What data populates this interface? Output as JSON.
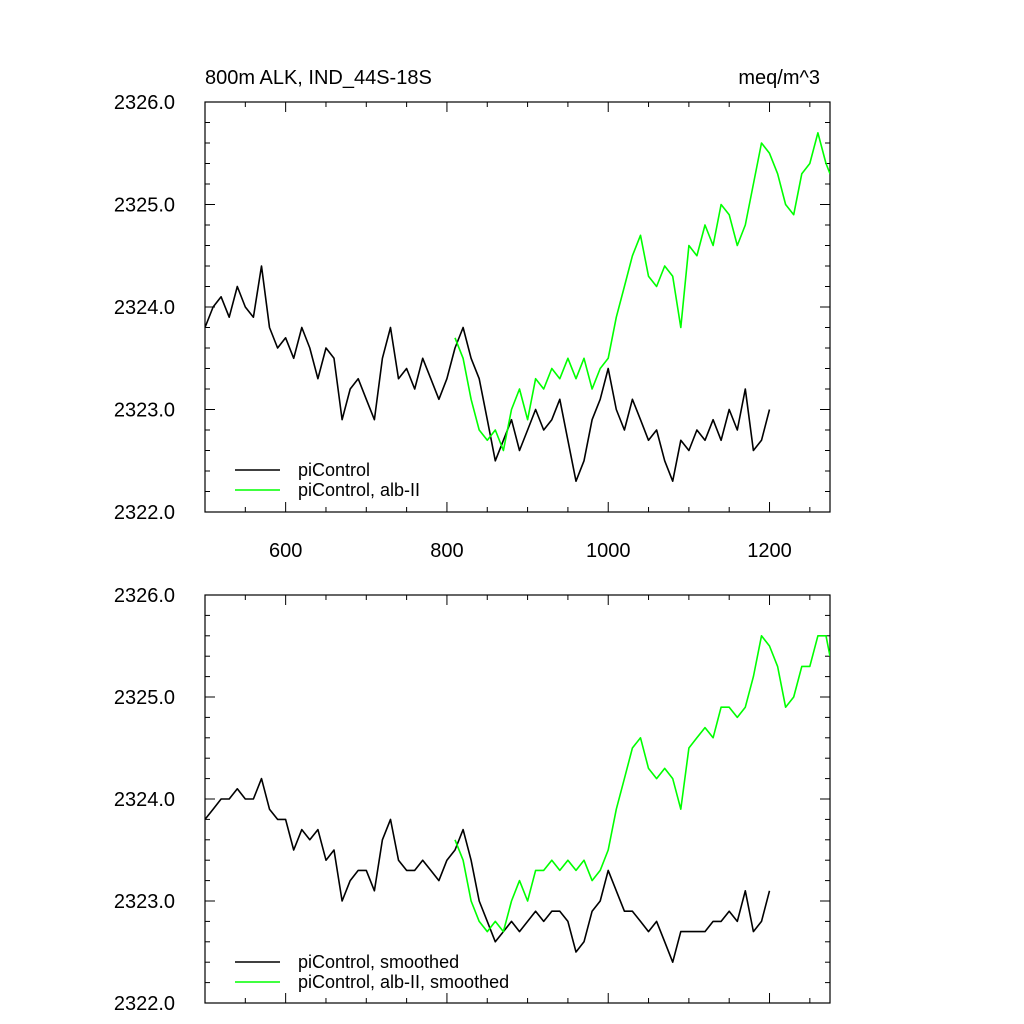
{
  "chart_data": [
    {
      "type": "line",
      "title": "800m ALK, IND_44S-18S",
      "units": "meq/m^3",
      "xlim": [
        500,
        1275
      ],
      "ylim": [
        2322.0,
        2326.0
      ],
      "x_ticks": [
        600,
        800,
        1000,
        1200
      ],
      "x_tick_labels": [
        "600",
        "800",
        "1000",
        "1200"
      ],
      "y_ticks": [
        2322.0,
        2323.0,
        2324.0,
        2325.0,
        2326.0
      ],
      "y_tick_labels": [
        "2322.0",
        "2323.0",
        "2324.0",
        "2325.0",
        "2326.0"
      ],
      "legend_position": "bottom-left",
      "series": [
        {
          "name": "piControl",
          "color": "#000000",
          "x": [
            500,
            510,
            520,
            530,
            540,
            550,
            560,
            570,
            580,
            590,
            600,
            610,
            620,
            630,
            640,
            650,
            660,
            670,
            680,
            690,
            700,
            710,
            720,
            730,
            740,
            750,
            760,
            770,
            780,
            790,
            800,
            810,
            820,
            830,
            840,
            850,
            860,
            870,
            880,
            890,
            900,
            910,
            920,
            930,
            940,
            950,
            960,
            970,
            980,
            990,
            1000,
            1010,
            1020,
            1030,
            1040,
            1050,
            1060,
            1070,
            1080,
            1090,
            1100,
            1110,
            1120,
            1130,
            1140,
            1150,
            1160,
            1170,
            1180,
            1190,
            1200
          ],
          "y": [
            2323.8,
            2324.0,
            2324.1,
            2323.9,
            2324.2,
            2324.0,
            2323.9,
            2324.4,
            2323.8,
            2323.6,
            2323.7,
            2323.5,
            2323.8,
            2323.6,
            2323.3,
            2323.6,
            2323.5,
            2322.9,
            2323.2,
            2323.3,
            2323.1,
            2322.9,
            2323.5,
            2323.8,
            2323.3,
            2323.4,
            2323.2,
            2323.5,
            2323.3,
            2323.1,
            2323.3,
            2323.6,
            2323.8,
            2323.5,
            2323.3,
            2322.9,
            2322.5,
            2322.7,
            2322.9,
            2322.6,
            2322.8,
            2323.0,
            2322.8,
            2322.9,
            2323.1,
            2322.7,
            2322.3,
            2322.5,
            2322.9,
            2323.1,
            2323.4,
            2323.0,
            2322.8,
            2323.1,
            2322.9,
            2322.7,
            2322.8,
            2322.5,
            2322.3,
            2322.7,
            2322.6,
            2322.8,
            2322.7,
            2322.9,
            2322.7,
            2323.0,
            2322.8,
            2323.2,
            2322.6,
            2322.7,
            2323.0
          ]
        },
        {
          "name": "piControl, alb-II",
          "color": "#00ff00",
          "x": [
            810,
            820,
            830,
            840,
            850,
            860,
            870,
            880,
            890,
            900,
            910,
            920,
            930,
            940,
            950,
            960,
            970,
            980,
            990,
            1000,
            1010,
            1020,
            1030,
            1040,
            1050,
            1060,
            1070,
            1080,
            1090,
            1100,
            1110,
            1120,
            1130,
            1140,
            1150,
            1160,
            1170,
            1180,
            1190,
            1200,
            1210,
            1220,
            1230,
            1240,
            1250,
            1260,
            1270,
            1275
          ],
          "y": [
            2323.7,
            2323.5,
            2323.1,
            2322.8,
            2322.7,
            2322.8,
            2322.6,
            2323.0,
            2323.2,
            2322.9,
            2323.3,
            2323.2,
            2323.4,
            2323.3,
            2323.5,
            2323.3,
            2323.5,
            2323.2,
            2323.4,
            2323.5,
            2323.9,
            2324.2,
            2324.5,
            2324.7,
            2324.3,
            2324.2,
            2324.4,
            2324.3,
            2323.8,
            2324.6,
            2324.5,
            2324.8,
            2324.6,
            2325.0,
            2324.9,
            2324.6,
            2324.8,
            2325.2,
            2325.6,
            2325.5,
            2325.3,
            2325.0,
            2324.9,
            2325.3,
            2325.4,
            2325.7,
            2325.4,
            2325.3
          ]
        }
      ]
    },
    {
      "type": "line",
      "xlim": [
        500,
        1275
      ],
      "ylim": [
        2322.0,
        2326.0
      ],
      "x_ticks": [
        600,
        800,
        1000,
        1200
      ],
      "y_ticks": [
        2322.0,
        2323.0,
        2324.0,
        2325.0,
        2326.0
      ],
      "y_tick_labels": [
        "2322.0",
        "2323.0",
        "2324.0",
        "2325.0",
        "2326.0"
      ],
      "legend_position": "bottom-left",
      "series": [
        {
          "name": "piControl, smoothed",
          "color": "#000000",
          "x": [
            500,
            510,
            520,
            530,
            540,
            550,
            560,
            570,
            580,
            590,
            600,
            610,
            620,
            630,
            640,
            650,
            660,
            670,
            680,
            690,
            700,
            710,
            720,
            730,
            740,
            750,
            760,
            770,
            780,
            790,
            800,
            810,
            820,
            830,
            840,
            850,
            860,
            870,
            880,
            890,
            900,
            910,
            920,
            930,
            940,
            950,
            960,
            970,
            980,
            990,
            1000,
            1010,
            1020,
            1030,
            1040,
            1050,
            1060,
            1070,
            1080,
            1090,
            1100,
            1110,
            1120,
            1130,
            1140,
            1150,
            1160,
            1170,
            1180,
            1190,
            1200
          ],
          "y": [
            2323.8,
            2323.9,
            2324.0,
            2324.0,
            2324.1,
            2324.0,
            2324.0,
            2324.2,
            2323.9,
            2323.8,
            2323.8,
            2323.5,
            2323.7,
            2323.6,
            2323.7,
            2323.4,
            2323.5,
            2323.0,
            2323.2,
            2323.3,
            2323.3,
            2323.1,
            2323.6,
            2323.8,
            2323.4,
            2323.3,
            2323.3,
            2323.4,
            2323.3,
            2323.2,
            2323.4,
            2323.5,
            2323.7,
            2323.4,
            2323.0,
            2322.8,
            2322.6,
            2322.7,
            2322.8,
            2322.7,
            2322.8,
            2322.9,
            2322.8,
            2322.9,
            2322.9,
            2322.8,
            2322.5,
            2322.6,
            2322.9,
            2323.0,
            2323.3,
            2323.1,
            2322.9,
            2322.9,
            2322.8,
            2322.7,
            2322.8,
            2322.6,
            2322.4,
            2322.7,
            2322.7,
            2322.7,
            2322.7,
            2322.8,
            2322.8,
            2322.9,
            2322.8,
            2323.1,
            2322.7,
            2322.8,
            2323.1
          ]
        },
        {
          "name": "piControl, alb-II, smoothed",
          "color": "#00ff00",
          "x": [
            810,
            820,
            830,
            840,
            850,
            860,
            870,
            880,
            890,
            900,
            910,
            920,
            930,
            940,
            950,
            960,
            970,
            980,
            990,
            1000,
            1010,
            1020,
            1030,
            1040,
            1050,
            1060,
            1070,
            1080,
            1090,
            1100,
            1110,
            1120,
            1130,
            1140,
            1150,
            1160,
            1170,
            1180,
            1190,
            1200,
            1210,
            1220,
            1230,
            1240,
            1250,
            1260,
            1270,
            1275
          ],
          "y": [
            2323.6,
            2323.4,
            2323.0,
            2322.8,
            2322.7,
            2322.8,
            2322.7,
            2323.0,
            2323.2,
            2323.0,
            2323.3,
            2323.3,
            2323.4,
            2323.3,
            2323.4,
            2323.3,
            2323.4,
            2323.2,
            2323.3,
            2323.5,
            2323.9,
            2324.2,
            2324.5,
            2324.6,
            2324.3,
            2324.2,
            2324.3,
            2324.2,
            2323.9,
            2324.5,
            2324.6,
            2324.7,
            2324.6,
            2324.9,
            2324.9,
            2324.8,
            2324.9,
            2325.2,
            2325.6,
            2325.5,
            2325.3,
            2324.9,
            2325.0,
            2325.3,
            2325.3,
            2325.6,
            2325.6,
            2325.4
          ]
        }
      ]
    }
  ]
}
